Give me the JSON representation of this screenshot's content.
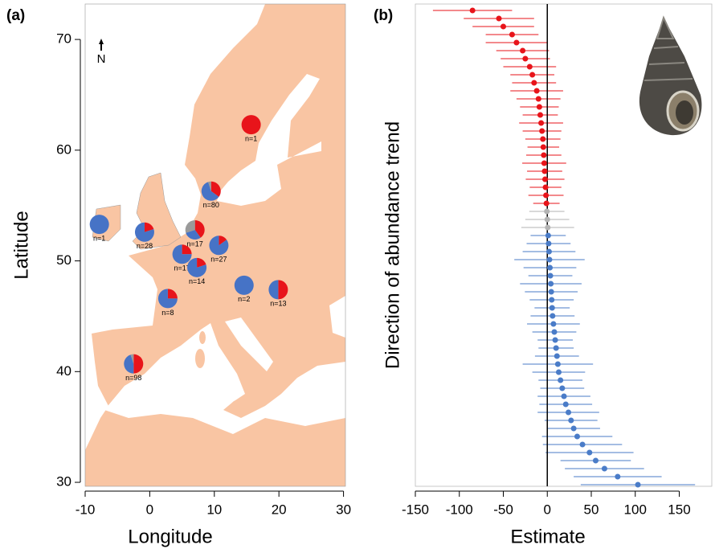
{
  "chart_data": [
    {
      "type": "map-pie",
      "title": "(a)",
      "x_label": "Longitude",
      "y_label": "Latitude",
      "north_label": "N",
      "xlim": [
        -10,
        30.3
      ],
      "ylim": [
        29.64,
        73.2
      ],
      "xticks": [
        -10,
        0,
        10,
        20,
        30
      ],
      "yticks": [
        30,
        40,
        50,
        60,
        70
      ],
      "colors": [
        "#e8141a",
        "#4673c6",
        "#9a9a9a"
      ],
      "pies": [
        {
          "lon": 15.7,
          "lat": 62.3,
          "label": "n=1",
          "shares": [
            100,
            0,
            0
          ]
        },
        {
          "lon": 9.5,
          "lat": 56.3,
          "label": "n=80",
          "shares": [
            35,
            60,
            5
          ]
        },
        {
          "lon": -7.8,
          "lat": 53.3,
          "label": "n=1",
          "shares": [
            0,
            100,
            0
          ]
        },
        {
          "lon": -0.8,
          "lat": 52.6,
          "label": "n=28",
          "shares": [
            20,
            80,
            0
          ]
        },
        {
          "lon": 7.0,
          "lat": 52.8,
          "label": "n=17",
          "shares": [
            40,
            30,
            30
          ]
        },
        {
          "lon": 10.7,
          "lat": 51.4,
          "label": "n=27",
          "shares": [
            15,
            85,
            0
          ]
        },
        {
          "lon": 5.0,
          "lat": 50.6,
          "label": "n=17",
          "shares": [
            25,
            75,
            0
          ]
        },
        {
          "lon": 7.3,
          "lat": 49.4,
          "label": "n=14",
          "shares": [
            20,
            80,
            0
          ]
        },
        {
          "lon": 14.6,
          "lat": 47.8,
          "label": "n=2",
          "shares": [
            0,
            100,
            0
          ]
        },
        {
          "lon": 19.9,
          "lat": 47.4,
          "label": "n=13",
          "shares": [
            50,
            50,
            0
          ]
        },
        {
          "lon": 2.8,
          "lat": 46.6,
          "label": "n=8",
          "shares": [
            25,
            75,
            0
          ]
        },
        {
          "lon": -2.5,
          "lat": 40.7,
          "label": "n=98",
          "shares": [
            50,
            45,
            5
          ]
        }
      ]
    },
    {
      "type": "forest",
      "title": "(b)",
      "x_label": "Estimate",
      "y_label": "Direction of abundance trend",
      "xlim": [
        -150,
        187
      ],
      "xticks": [
        -150,
        -100,
        -50,
        0,
        50,
        100,
        150
      ],
      "series": [
        {
          "color": "#e8141a",
          "values": [
            -85,
            -55,
            -50,
            -40,
            -35,
            -28,
            -25,
            -20,
            -17,
            -15,
            -12,
            -10,
            -9,
            -8,
            -7,
            -6,
            -5,
            -4.5,
            -4,
            -3.5,
            -3,
            -2.5,
            -2,
            -1.5,
            -1
          ],
          "errors": [
            45,
            40,
            35,
            30,
            35,
            30,
            28,
            30,
            25,
            25,
            30,
            25,
            22,
            20,
            25,
            22,
            20,
            18,
            20,
            25,
            20,
            22,
            18,
            20,
            15
          ]
        },
        {
          "color": "#b4b4b4",
          "values": [
            -0.5,
            0,
            0.5
          ],
          "errors": [
            20,
            25,
            30
          ]
        },
        {
          "color": "#4a7cc8",
          "values": [
            1,
            1.5,
            2,
            2.5,
            3,
            3.5,
            4,
            4.5,
            5,
            5.5,
            6,
            7,
            8,
            9,
            10,
            11,
            12,
            13,
            15,
            17,
            19,
            21,
            24,
            27,
            30,
            34,
            40,
            48,
            55,
            65,
            80,
            103
          ],
          "errors": [
            20,
            25,
            30,
            40,
            30,
            25,
            35,
            30,
            25,
            20,
            25,
            30,
            25,
            20,
            20,
            25,
            40,
            30,
            25,
            25,
            30,
            30,
            35,
            30,
            30,
            40,
            45,
            50,
            40,
            45,
            50,
            65
          ]
        }
      ]
    }
  ]
}
